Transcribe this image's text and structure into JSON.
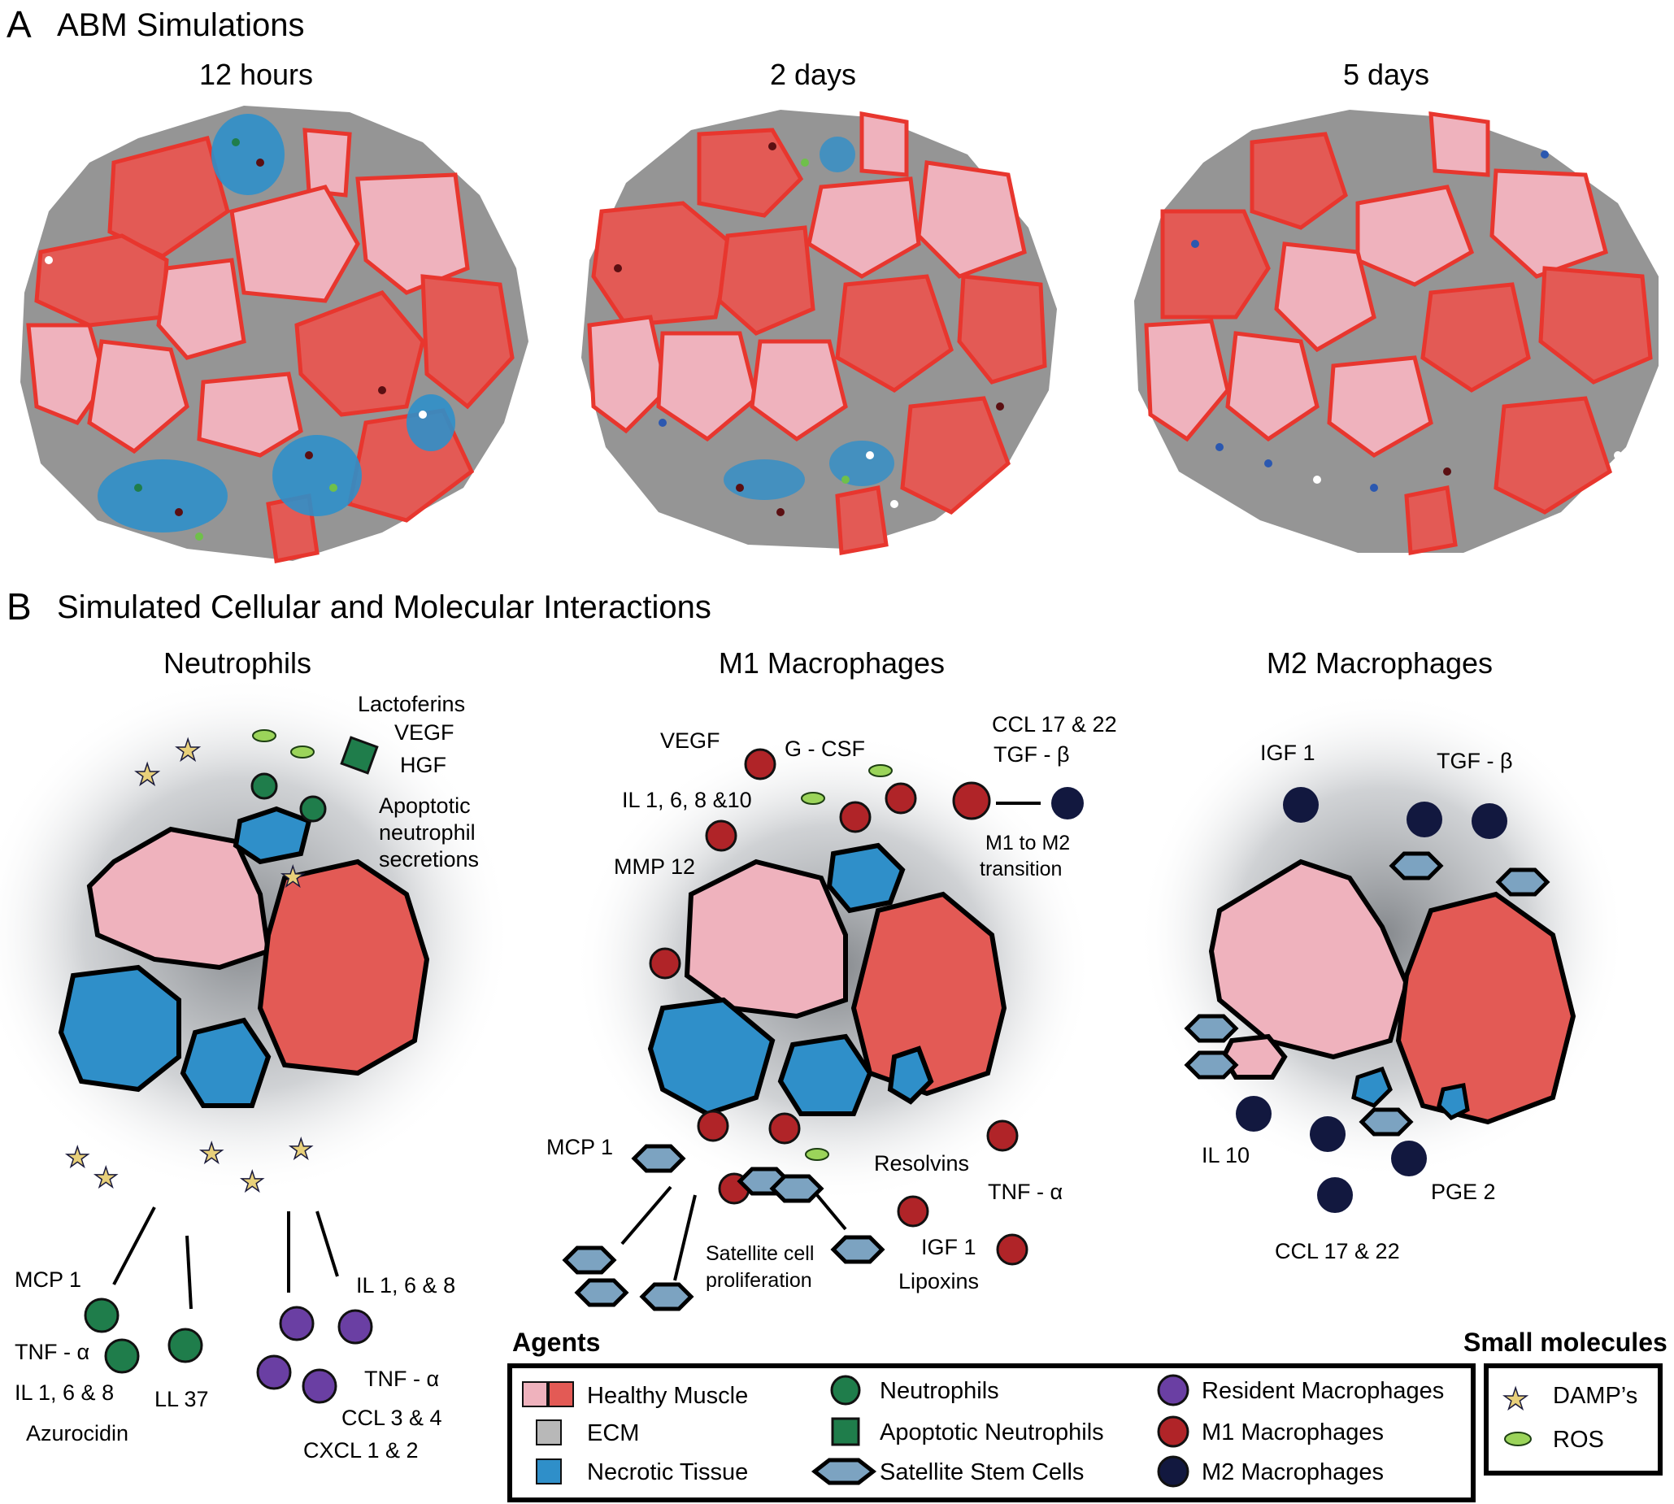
{
  "panel_a": {
    "letter": "A",
    "title": "ABM Simulations",
    "timepoints": [
      "12 hours",
      "2 days",
      "5 days"
    ]
  },
  "panel_b": {
    "letter": "B",
    "title": "Simulated Cellular and Molecular Interactions",
    "neutrophils": {
      "title": "Neutrophils",
      "labels": {
        "lactoferins": "Lactoferins",
        "vegf": "VEGF",
        "hgf": "HGF",
        "apoptotic1": "Apoptotic",
        "apoptotic2": "neutrophil",
        "apoptotic3": "secretions",
        "mcp1": "MCP 1",
        "tnf_a": "TNF - α",
        "il168": "IL 1, 6 & 8",
        "azurocidin": "Azurocidin",
        "ll37": "LL 37",
        "il168_right": "IL 1, 6 & 8",
        "tnf_a_right": "TNF - α",
        "ccl34": "CCL 3 & 4",
        "cxcl12": "CXCL 1 & 2"
      }
    },
    "m1": {
      "title": "M1 Macrophages",
      "labels": {
        "vegf": "VEGF",
        "gcsf": "G - CSF",
        "il16810": "IL 1, 6, 8 &10",
        "mmp12": "MMP 12",
        "ccl1722": "CCL 17 & 22",
        "tgfb": "TGF - β",
        "m1m2_1": "M1 to M2",
        "m1m2_2": "transition",
        "mcp1": "MCP 1",
        "resolvins": "Resolvins",
        "tnf_a": "TNF - α",
        "igf1": "IGF 1",
        "lipoxins": "Lipoxins",
        "satellite1": "Satellite cell",
        "satellite2": "proliferation"
      }
    },
    "m2": {
      "title": "M2 Macrophages",
      "labels": {
        "igf1": "IGF 1",
        "tgfb": "TGF - β",
        "il10": "IL 10",
        "pge2": "PGE 2",
        "ccl1722": "CCL 17 & 22"
      }
    }
  },
  "legend": {
    "agents_title": "Agents",
    "small_title": "Small molecules",
    "agents": {
      "healthy_muscle": "Healthy Muscle",
      "ecm": "ECM",
      "necrotic": "Necrotic Tissue",
      "neutrophils": "Neutrophils",
      "apoptotic_neutrophils": "Apoptotic Neutrophils",
      "satellite": "Satellite Stem Cells",
      "resident_macrophages": "Resident Macrophages",
      "m1": "M1 Macrophages",
      "m2": "M2 Macrophages"
    },
    "small": {
      "damps": "DAMP’s",
      "ros": "ROS"
    }
  },
  "colors": {
    "healthy_light": "#efb2bd",
    "healthy_dark": "#e35a55",
    "fiber_outline": "#e8362e",
    "ecm": "#959595",
    "necrotic": "#2f8fc9",
    "neutrophil": "#1f7d4b",
    "resident_macrophage": "#6a3fa3",
    "m1": "#b02428",
    "m2": "#12183f",
    "satellite": "#7ca3c1",
    "damp_star": "#e8d07a",
    "ros": "#9bd45a"
  }
}
